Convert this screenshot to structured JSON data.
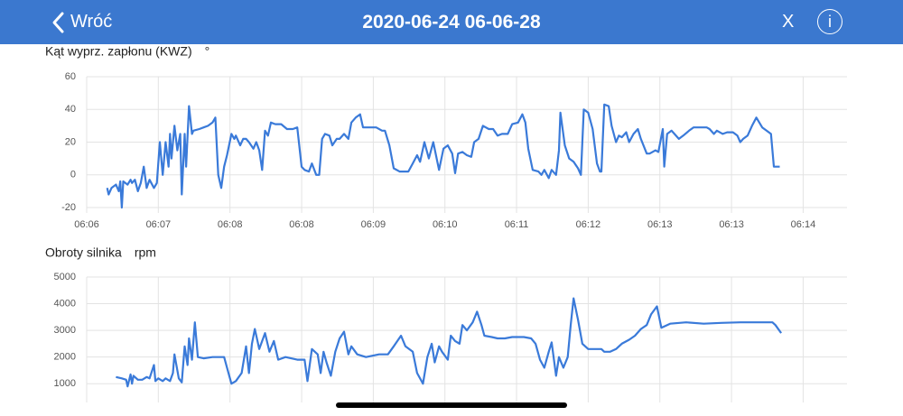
{
  "header": {
    "back": "Wróć",
    "title": "2020-06-24 06-06-28",
    "close": "X",
    "info": "i"
  },
  "chart_data": [
    {
      "type": "line",
      "title": "Kąt wyprz. zapłonu (KWZ)",
      "unit": "°",
      "color": "#3a7ad9",
      "grid": true,
      "xlim": [
        390,
        910
      ],
      "xticks": [
        {
          "value": 390,
          "label": "06:06"
        },
        {
          "value": 439,
          "label": "06:07"
        },
        {
          "value": 488,
          "label": "06:08"
        },
        {
          "value": 537,
          "label": "06:08"
        },
        {
          "value": 586,
          "label": "06:09"
        },
        {
          "value": 635,
          "label": "06:10"
        },
        {
          "value": 684,
          "label": "06:11"
        },
        {
          "value": 733,
          "label": "06:12"
        },
        {
          "value": 782,
          "label": "06:13"
        },
        {
          "value": 831,
          "label": "06:13"
        },
        {
          "value": 880,
          "label": "06:14"
        }
      ],
      "ylim": [
        -20,
        60
      ],
      "yticks": [
        -20,
        0,
        20,
        40,
        60
      ],
      "x": [
        404,
        405,
        407,
        410,
        412,
        413,
        414,
        415,
        418,
        420,
        421,
        423,
        425,
        427,
        429,
        431,
        433,
        436,
        438,
        440,
        442,
        444,
        446,
        447,
        448,
        450,
        452,
        454,
        455,
        457,
        458,
        460,
        462,
        463,
        467,
        470,
        473,
        476,
        478,
        480,
        482,
        484,
        486,
        489,
        491,
        492,
        495,
        497,
        499,
        501,
        504,
        506,
        508,
        510,
        512,
        514,
        516,
        519,
        523,
        527,
        531,
        534,
        537,
        539,
        542,
        544,
        547,
        549,
        551,
        553,
        556,
        558,
        561,
        563,
        566,
        569,
        571,
        574,
        577,
        579,
        584,
        588,
        592,
        594,
        597,
        600,
        604,
        610,
        613,
        616,
        618,
        621,
        624,
        627,
        631,
        634,
        637,
        640,
        642,
        644,
        647,
        650,
        653,
        655,
        658,
        661,
        665,
        668,
        671,
        674,
        678,
        681,
        685,
        688,
        690,
        692,
        695,
        699,
        701,
        703,
        706,
        708,
        711,
        713,
        714,
        717,
        720,
        723,
        726,
        728,
        730,
        733,
        736,
        739,
        741,
        742,
        744,
        747,
        749,
        752,
        754,
        756,
        759,
        761,
        764,
        767,
        769,
        773,
        775,
        779,
        781,
        784,
        785,
        787,
        790,
        792,
        795,
        798,
        802,
        805,
        810,
        814,
        816,
        819,
        821,
        825,
        828,
        832,
        835,
        837,
        839,
        842,
        845,
        848,
        852,
        855,
        858,
        860,
        864
      ],
      "values": [
        -8,
        -12,
        -8,
        -6,
        -10,
        -4,
        -20,
        -4,
        -6,
        -3,
        -5,
        -3,
        -10,
        -5,
        5,
        -8,
        -3,
        -8,
        -5,
        20,
        0,
        20,
        5,
        25,
        10,
        30,
        15,
        25,
        -12,
        25,
        5,
        42,
        25,
        27,
        28,
        29,
        30,
        32,
        35,
        0,
        -8,
        5,
        12,
        25,
        22,
        24,
        18,
        22,
        22,
        20,
        16,
        20,
        15,
        3,
        27,
        24,
        32,
        31,
        31,
        28,
        28,
        29,
        5,
        3,
        2,
        7,
        0,
        0,
        22,
        25,
        24,
        18,
        22,
        22,
        25,
        22,
        32,
        35,
        37,
        29,
        29,
        29,
        27,
        27,
        18,
        4,
        2,
        2,
        7,
        12,
        8,
        20,
        10,
        20,
        3,
        16,
        18,
        13,
        1,
        13,
        14,
        12,
        11,
        20,
        22,
        30,
        28,
        28,
        24,
        25,
        25,
        31,
        32,
        37,
        32,
        16,
        3,
        2,
        0,
        3,
        -2,
        3,
        0,
        15,
        38,
        18,
        10,
        8,
        4,
        0,
        40,
        38,
        28,
        7,
        2,
        2,
        43,
        42,
        30,
        20,
        24,
        23,
        26,
        20,
        25,
        28,
        22,
        13,
        13,
        15,
        14,
        28,
        5,
        25,
        27,
        25,
        22,
        24,
        27,
        29,
        29,
        29,
        28,
        25,
        27,
        25,
        26,
        26,
        24,
        20,
        22,
        24,
        30,
        35,
        29,
        27,
        25,
        5,
        5
      ]
    },
    {
      "type": "line",
      "title": "Obroty silnika",
      "unit": "rpm",
      "color": "#3a7ad9",
      "grid": true,
      "xlim": [
        390,
        910
      ],
      "xticks": [
        390,
        439,
        488,
        537,
        586,
        635,
        684,
        733,
        782,
        831,
        880
      ],
      "ylim": [
        500,
        5000
      ],
      "yticks": [
        1000,
        2000,
        3000,
        4000,
        5000
      ],
      "x": [
        410,
        414,
        417,
        418,
        420,
        421,
        422,
        425,
        428,
        431,
        433,
        436,
        437,
        439,
        442,
        444,
        447,
        449,
        450,
        453,
        455,
        457,
        459,
        460,
        462,
        464,
        466,
        470,
        476,
        484,
        486,
        489,
        492,
        496,
        499,
        501,
        503,
        505,
        508,
        512,
        515,
        518,
        521,
        526,
        534,
        539,
        541,
        544,
        548,
        550,
        552,
        554,
        557,
        560,
        563,
        566,
        569,
        571,
        575,
        581,
        590,
        596,
        600,
        605,
        608,
        613,
        616,
        620,
        623,
        626,
        628,
        631,
        633,
        637,
        639,
        642,
        645,
        647,
        650,
        654,
        657,
        660,
        662,
        667,
        671,
        676,
        681,
        689,
        694,
        697,
        700,
        703,
        706,
        708,
        711,
        713,
        716,
        719,
        721,
        723,
        726,
        729,
        733,
        738,
        742,
        744,
        748,
        752,
        756,
        761,
        765,
        769,
        773,
        776,
        780,
        783,
        789,
        800,
        812,
        824,
        837,
        849,
        859,
        861,
        865
      ],
      "values": [
        1250,
        1200,
        1150,
        900,
        1350,
        1000,
        1300,
        1150,
        1150,
        1250,
        1200,
        1700,
        1100,
        1200,
        1100,
        1200,
        1100,
        1400,
        2100,
        1200,
        1050,
        2400,
        1700,
        2700,
        1900,
        3300,
        2000,
        1950,
        2000,
        2000,
        1600,
        1000,
        1100,
        1400,
        2400,
        1400,
        2500,
        3050,
        2300,
        2900,
        2200,
        2600,
        1900,
        2000,
        1900,
        1900,
        1100,
        2300,
        2100,
        1400,
        2200,
        1800,
        1300,
        2200,
        2700,
        2950,
        2100,
        2400,
        2100,
        2000,
        2100,
        2100,
        2400,
        2800,
        2400,
        2200,
        1400,
        1000,
        2000,
        2500,
        1800,
        2400,
        2200,
        1900,
        2800,
        2600,
        2500,
        3200,
        3000,
        3300,
        3700,
        3200,
        2800,
        2750,
        2700,
        2700,
        2750,
        2750,
        2700,
        2500,
        1900,
        1600,
        2200,
        2550,
        1300,
        2000,
        1600,
        2000,
        3200,
        4200,
        3400,
        2500,
        2300,
        2300,
        2300,
        2200,
        2200,
        2300,
        2500,
        2650,
        2800,
        3050,
        3200,
        3600,
        3900,
        3100,
        3250,
        3300,
        3250,
        3280,
        3300,
        3300,
        3300,
        3200,
        2900
      ]
    }
  ]
}
